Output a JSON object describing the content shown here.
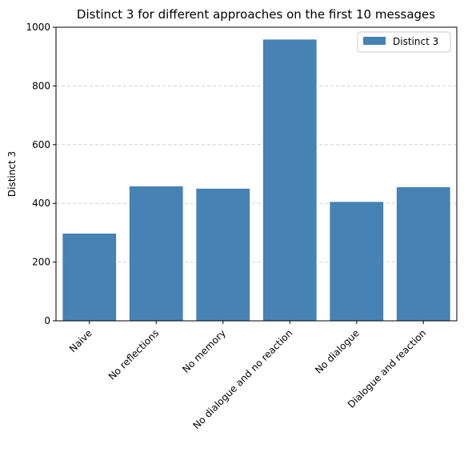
{
  "chart_data": {
    "type": "bar",
    "title": "Distinct 3 for different approaches on the first 10 messages",
    "xlabel": "",
    "ylabel": "Distinct 3",
    "categories": [
      "Naive",
      "No reflections",
      "No memory",
      "No dialogue and no reaction",
      "No dialogue",
      "Dialogue and reaction"
    ],
    "series": [
      {
        "name": "Distinct 3",
        "values": [
          297,
          458,
          450,
          958,
          405,
          455
        ],
        "color": "#4682b4"
      }
    ],
    "ylim": [
      0,
      1000
    ],
    "yticks": [
      0,
      200,
      400,
      600,
      800,
      1000
    ],
    "grid": "y, dashed",
    "legend": "top-right"
  }
}
